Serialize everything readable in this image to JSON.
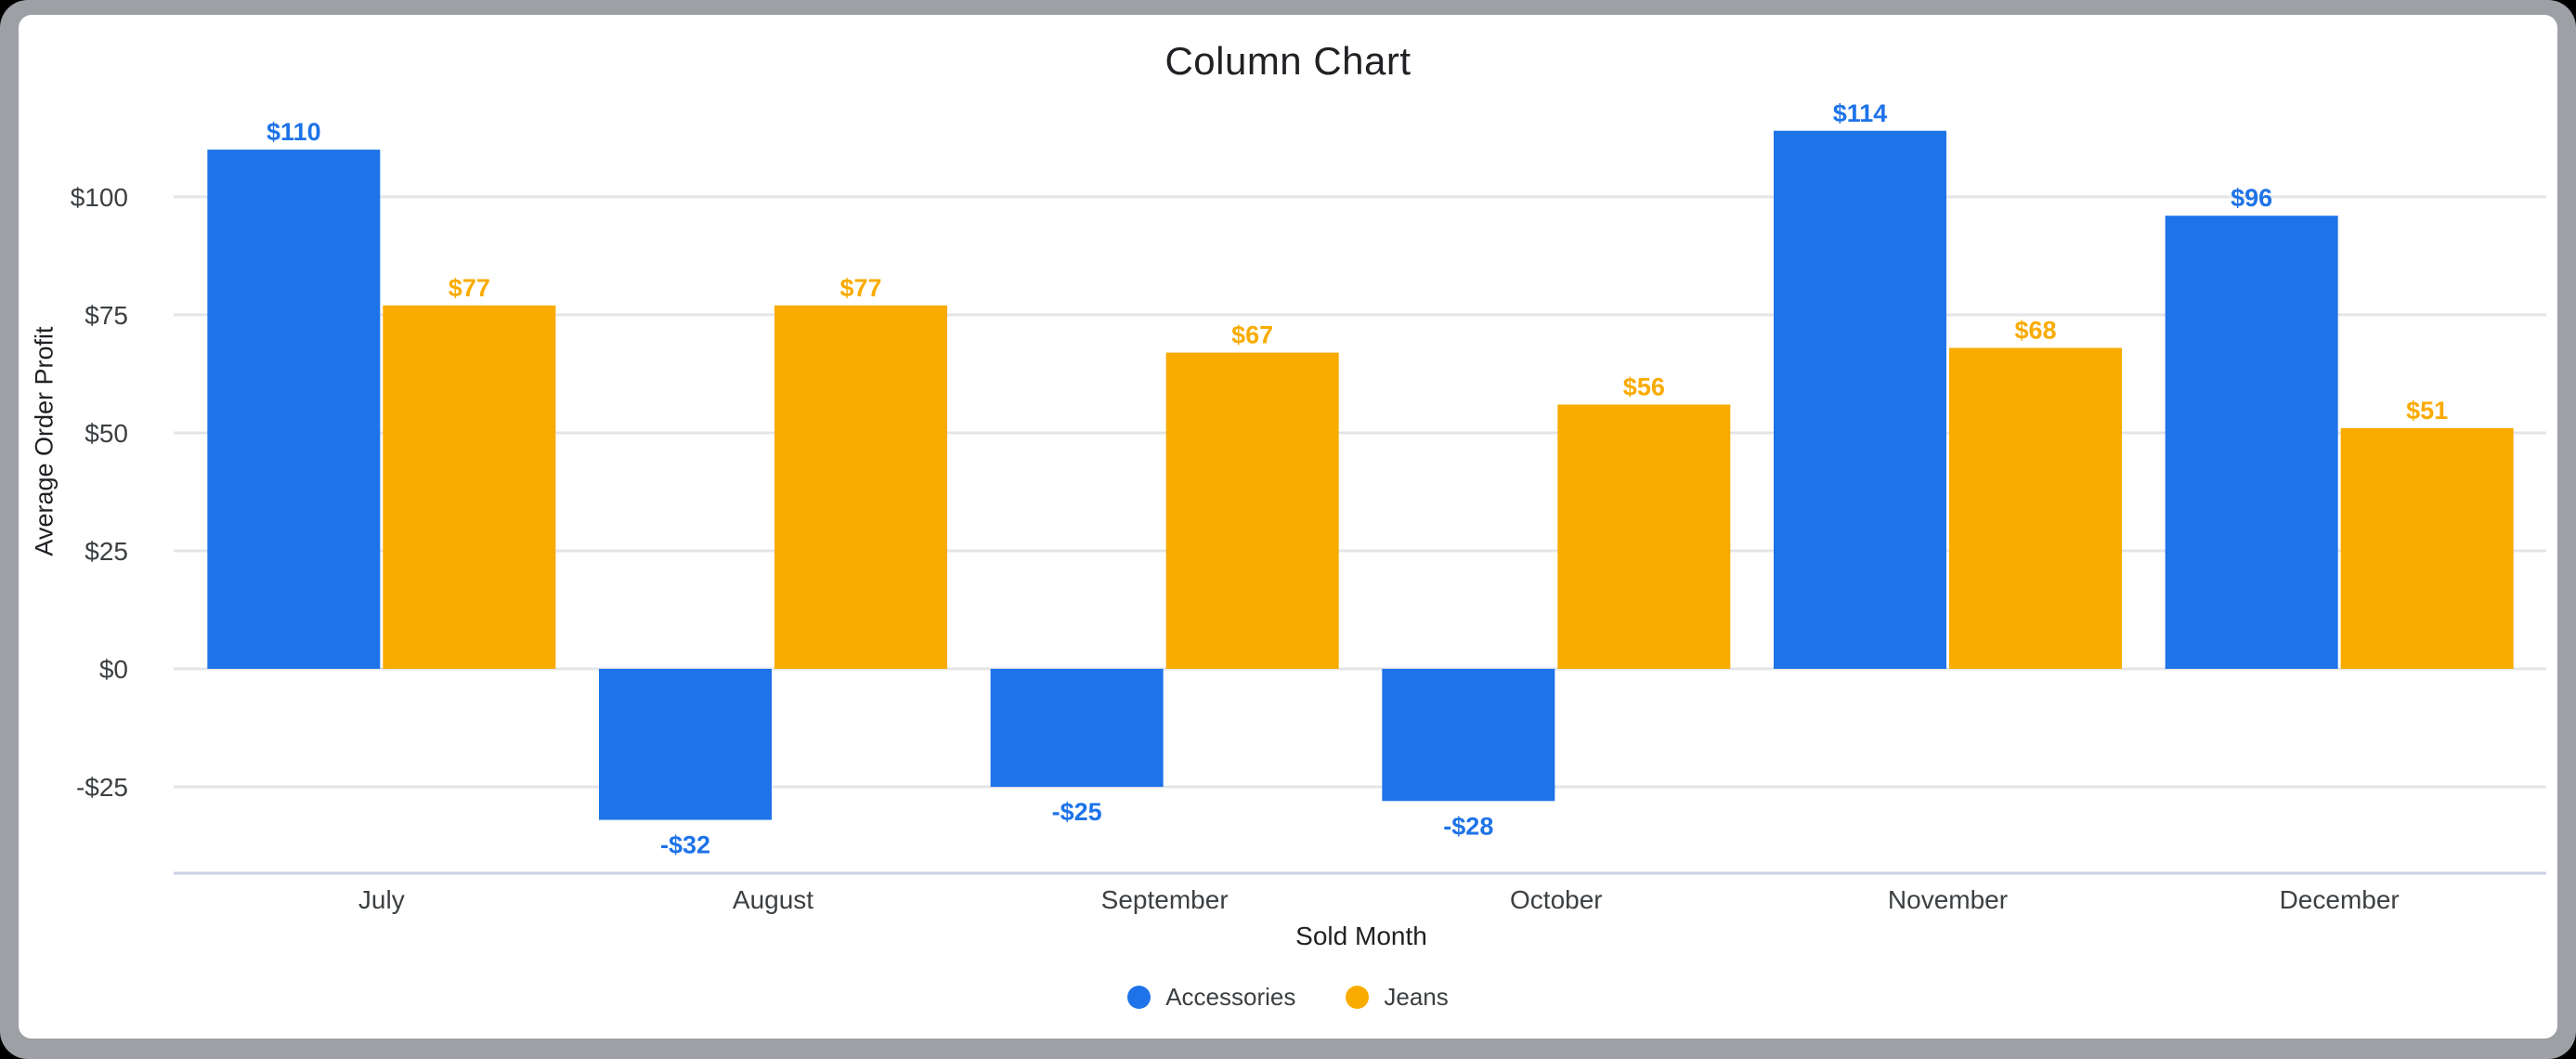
{
  "window": {
    "frame_color": "#9da0a4",
    "canvas_color": "#ffffff",
    "outer_background": "#000000"
  },
  "chart_data": {
    "type": "bar",
    "title": "Column Chart",
    "xlabel": "Sold Month",
    "ylabel": "Average Order Profit",
    "categories": [
      "July",
      "August",
      "September",
      "October",
      "November",
      "December"
    ],
    "series": [
      {
        "name": "Accessories",
        "color": "#1e73e8",
        "values": [
          110,
          -32,
          -25,
          -28,
          114,
          96
        ],
        "labels": [
          "$110",
          "-$32",
          "-$25",
          "-$28",
          "$114",
          "$96"
        ]
      },
      {
        "name": "Jeans",
        "color": "#f9ab00",
        "values": [
          77,
          77,
          67,
          56,
          68,
          51
        ],
        "labels": [
          "$77",
          "$77",
          "$67",
          "$56",
          "$68",
          "$51"
        ]
      }
    ],
    "y_ticks": [
      {
        "value": 100,
        "label": "$100"
      },
      {
        "value": 75,
        "label": "$75"
      },
      {
        "value": 50,
        "label": "$50"
      },
      {
        "value": 25,
        "label": "$25"
      },
      {
        "value": 0,
        "label": "$0"
      },
      {
        "value": -25,
        "label": "-$25"
      }
    ],
    "ylim": [
      -43,
      116
    ],
    "grid": true,
    "legend_position": "bottom"
  },
  "colors": {
    "grid_line": "#e3e5e8",
    "axis_bottom_line": "#c9d3e3",
    "title_text": "#202124",
    "tick_text": "#3c4043",
    "category_text": "#3c4043",
    "legend_text": "#3c4043"
  }
}
